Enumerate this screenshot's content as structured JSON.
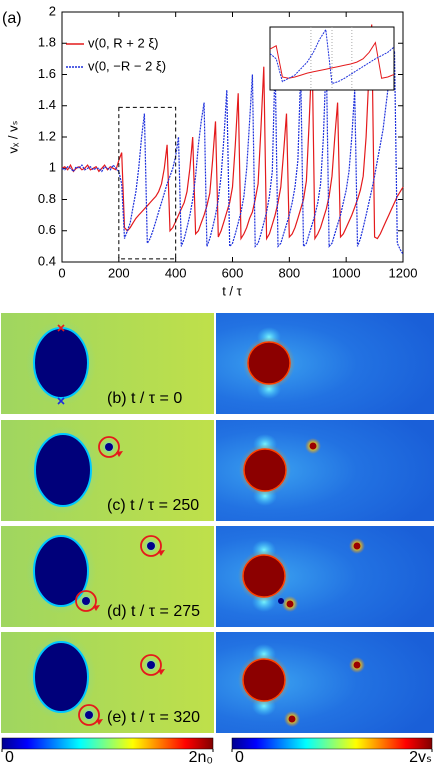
{
  "chart_data": {
    "type": "line",
    "panel_label": "(a)",
    "xlabel": "t / τ",
    "ylabel": "vₓ / vₛ",
    "x": [
      0,
      10,
      20,
      30,
      40,
      50,
      60,
      70,
      80,
      90,
      100,
      110,
      120,
      130,
      140,
      150,
      160,
      170,
      180,
      190,
      200,
      210,
      220,
      230,
      240,
      250,
      260,
      270,
      280,
      290,
      300,
      310,
      320,
      330,
      340,
      350,
      360,
      370,
      380,
      390,
      400,
      410,
      420,
      430,
      440,
      450,
      460,
      470,
      480,
      490,
      500,
      510,
      520,
      530,
      540,
      550,
      560,
      570,
      580,
      590,
      600,
      610,
      620,
      630,
      640,
      650,
      660,
      670,
      680,
      690,
      700,
      710,
      720,
      730,
      740,
      750,
      760,
      770,
      780,
      790,
      800,
      810,
      820,
      830,
      840,
      850,
      860,
      870,
      880,
      890,
      900,
      910,
      920,
      930,
      940,
      950,
      960,
      970,
      980,
      990,
      1000,
      1010,
      1020,
      1030,
      1040,
      1050,
      1060,
      1070,
      1080,
      1090,
      1100,
      1110,
      1120,
      1130,
      1140,
      1150,
      1160,
      1170,
      1180,
      1190,
      1200
    ],
    "series": [
      {
        "name": "v(0, R + 2 ξ)",
        "color": "#e41a1c",
        "style": "solid",
        "values": [
          1.0,
          1.01,
          0.99,
          1.02,
          0.98,
          1.0,
          1.01,
          0.99,
          1.0,
          1.02,
          0.99,
          1.0,
          1.01,
          0.98,
          1.0,
          1.02,
          0.99,
          1.01,
          1.0,
          0.99,
          1.05,
          1.1,
          0.62,
          0.6,
          0.62,
          0.65,
          0.68,
          0.7,
          0.72,
          0.74,
          0.76,
          0.78,
          0.8,
          0.82,
          0.85,
          0.9,
          1.0,
          1.15,
          0.6,
          0.62,
          0.66,
          0.7,
          0.74,
          0.78,
          0.85,
          1.0,
          1.2,
          0.58,
          0.6,
          0.65,
          0.7,
          0.76,
          0.84,
          1.05,
          1.3,
          0.56,
          0.6,
          0.66,
          0.72,
          0.78,
          0.88,
          1.15,
          1.48,
          0.55,
          0.58,
          0.62,
          0.68,
          0.72,
          0.8,
          0.9,
          1.25,
          1.65,
          0.55,
          0.58,
          0.64,
          0.7,
          0.78,
          0.88,
          1.1,
          1.35,
          0.56,
          0.58,
          0.62,
          0.68,
          0.74,
          0.8,
          0.92,
          1.3,
          1.75,
          0.55,
          0.58,
          0.62,
          0.68,
          0.74,
          0.82,
          0.95,
          1.2,
          1.42,
          0.56,
          0.58,
          0.62,
          0.66,
          0.7,
          0.75,
          0.8,
          0.86,
          0.95,
          1.2,
          1.6,
          1.92,
          0.56,
          0.55,
          0.58,
          0.62,
          0.66,
          0.7,
          0.74,
          0.78,
          0.82,
          0.85,
          0.88
        ]
      },
      {
        "name": "v(0, −R − 2 ξ)",
        "color": "#1c2fdc",
        "style": "dotted",
        "values": [
          1.0,
          0.99,
          1.01,
          1.0,
          0.98,
          1.01,
          1.0,
          1.02,
          0.99,
          1.0,
          1.01,
          0.99,
          1.0,
          1.0,
          0.98,
          1.01,
          1.0,
          0.99,
          1.02,
          1.0,
          0.98,
          0.9,
          0.55,
          0.6,
          0.65,
          0.75,
          0.85,
          1.0,
          1.2,
          1.35,
          0.52,
          0.55,
          0.6,
          0.66,
          0.72,
          0.78,
          0.84,
          0.9,
          0.95,
          1.0,
          1.08,
          1.2,
          0.5,
          0.55,
          0.62,
          0.7,
          0.8,
          0.95,
          1.15,
          1.3,
          1.42,
          0.5,
          0.55,
          0.62,
          0.7,
          0.8,
          0.95,
          1.2,
          1.5,
          0.5,
          0.52,
          0.58,
          0.65,
          0.72,
          0.82,
          1.0,
          1.3,
          1.6,
          0.5,
          0.52,
          0.58,
          0.65,
          0.72,
          0.82,
          0.98,
          1.68,
          0.5,
          0.52,
          0.58,
          0.64,
          0.7,
          0.78,
          0.88,
          1.05,
          1.62,
          0.5,
          0.52,
          0.58,
          0.64,
          0.7,
          0.78,
          0.9,
          1.2,
          1.72,
          0.5,
          0.52,
          0.58,
          0.64,
          0.7,
          0.78,
          0.86,
          0.98,
          1.2,
          1.5,
          0.5,
          0.55,
          0.62,
          0.7,
          0.78,
          0.86,
          0.95,
          1.05,
          1.15,
          1.25,
          1.4,
          1.55,
          1.65,
          1.75,
          0.52,
          0.48,
          0.45
        ]
      }
    ],
    "xlim": [
      0,
      1200
    ],
    "xticks": [
      0,
      200,
      400,
      600,
      800,
      1000,
      1200
    ],
    "ylim": [
      0.4,
      2
    ],
    "yticks": [
      0.4,
      0.6,
      0.8,
      1,
      1.2,
      1.4,
      1.6,
      1.8,
      2
    ],
    "grid": false,
    "legend": "upper left",
    "zoom": {
      "xlim": [
        200,
        400
      ],
      "ylim": [
        0.42,
        1.39
      ]
    }
  },
  "panels": [
    {
      "label": "(b) t / τ = 0"
    },
    {
      "label": "(c) t / τ = 250"
    },
    {
      "label": "(d) t / τ = 275"
    },
    {
      "label": "(e) t / τ = 320"
    }
  ],
  "colorbars": [
    {
      "lim": [
        0,
        2
      ],
      "ticks": [
        0,
        {
          "value": 2,
          "label": "2n₀"
        }
      ]
    },
    {
      "lim": [
        0,
        2
      ],
      "ticks": [
        0,
        {
          "value": 2,
          "label": "2vₛ"
        }
      ]
    }
  ]
}
